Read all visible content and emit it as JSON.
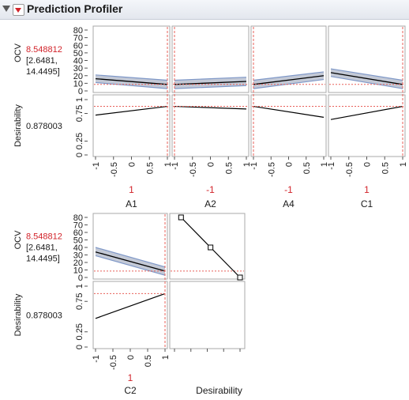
{
  "title": "Prediction Profiler",
  "response": {
    "label": "OCV",
    "value": "8.548812",
    "ci_low": "[2.6481,",
    "ci_high": "14.4495]"
  },
  "desirability": {
    "label": "Desirability",
    "value": "0.878003"
  },
  "colors": {
    "value_red": "#d2232a",
    "line": "#000000",
    "band": "#c3c9d6",
    "band_edge": "#7f98c8",
    "ref": "#e8605a",
    "grid_frame": "#a8a8a8",
    "text": "#1a1a1a"
  },
  "chart_data": [
    {
      "type": "line",
      "title": "",
      "response": "OCV",
      "ylim": [
        0,
        80
      ],
      "y_ticks": [
        "0",
        "10",
        "20",
        "30",
        "40",
        "50",
        "60",
        "70",
        "80"
      ],
      "desirability_ylim": [
        0,
        1
      ],
      "desirability_ticks": [
        "0",
        "0.25",
        "0.75",
        "1"
      ],
      "x_ticks": [
        "-1",
        "-0.5",
        "0",
        "0.5",
        "1"
      ],
      "factors": [
        {
          "name": "A1",
          "current": "1",
          "x": [
            -1,
            1
          ],
          "ocv": [
            16,
            8.5
          ],
          "ocv_lo": [
            11,
            3
          ],
          "ocv_hi": [
            21,
            14
          ],
          "desirability": [
            0.72,
            0.878
          ]
        },
        {
          "name": "A2",
          "current": "-1",
          "x": [
            -1,
            1
          ],
          "ocv": [
            8.5,
            12.5
          ],
          "ocv_lo": [
            3,
            7
          ],
          "ocv_hi": [
            14,
            18
          ],
          "desirability": [
            0.878,
            0.83
          ]
        },
        {
          "name": "A4",
          "current": "-1",
          "x": [
            -1,
            1
          ],
          "ocv": [
            8.5,
            20
          ],
          "ocv_lo": [
            3,
            15
          ],
          "ocv_hi": [
            14,
            25
          ],
          "desirability": [
            0.878,
            0.68
          ]
        },
        {
          "name": "C1",
          "current": "1",
          "x": [
            -1,
            1
          ],
          "ocv": [
            24,
            8.5
          ],
          "ocv_lo": [
            19,
            3
          ],
          "ocv_hi": [
            29,
            14
          ],
          "desirability": [
            0.64,
            0.878
          ]
        },
        {
          "name": "C2",
          "current": "1",
          "x": [
            -1,
            1
          ],
          "ocv": [
            34,
            8.5
          ],
          "ocv_lo": [
            29,
            3
          ],
          "ocv_hi": [
            40,
            14
          ],
          "desirability": [
            0.47,
            0.878
          ]
        }
      ]
    },
    {
      "type": "line",
      "title": "",
      "xlabel": "Desirability",
      "ylabel": "OCV",
      "x_ticks": [
        "0",
        "0.25",
        "0.5",
        "0.75",
        "1"
      ],
      "xlim": [
        0,
        1
      ],
      "ylim": [
        0,
        80
      ],
      "x": [
        0.1,
        0.55,
        1.0
      ],
      "y": [
        80,
        40,
        0
      ]
    }
  ]
}
